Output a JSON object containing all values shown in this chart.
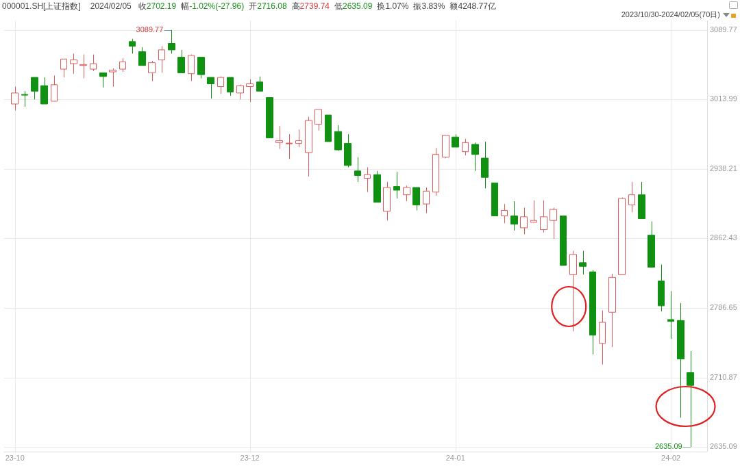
{
  "chart_data": {
    "type": "candlestick",
    "title": "000001.SH[上证指数]",
    "subtitle": "2023/10/30-2024/02/05(70日)",
    "annotations": [
      "2024/02/05",
      "收2702.19",
      "幅-1.02%(-27.96)",
      "开2716.08",
      "高2739.74",
      "低2635.09",
      "换1.07%",
      "振3.83%",
      "额4248.77亿",
      "3089.77",
      "2635.09"
    ],
    "categories": [
      "23-10",
      null,
      null,
      null,
      null,
      null,
      null,
      null,
      null,
      null,
      null,
      null,
      null,
      null,
      null,
      null,
      null,
      null,
      null,
      null,
      null,
      null,
      null,
      null,
      "23-12",
      null,
      null,
      null,
      null,
      null,
      null,
      null,
      null,
      null,
      null,
      null,
      null,
      null,
      null,
      null,
      null,
      null,
      null,
      null,
      null,
      "24-01",
      null,
      null,
      null,
      null,
      null,
      null,
      null,
      null,
      null,
      null,
      null,
      null,
      null,
      null,
      null,
      null,
      null,
      null,
      null,
      null,
      null,
      "24-02",
      null,
      null
    ],
    "ohlc": [
      [
        3009,
        3028,
        3002,
        3021
      ],
      [
        3019,
        3023,
        3006,
        3019
      ],
      [
        3038,
        3038,
        3014,
        3023
      ],
      [
        3029,
        3038,
        3009,
        3009
      ],
      [
        3012,
        3040,
        3012,
        3030
      ],
      [
        3047,
        3058,
        3038,
        3058
      ],
      [
        3053,
        3064,
        3042,
        3057
      ],
      [
        3051,
        3063,
        3037,
        3052
      ],
      [
        3047,
        3063,
        3045,
        3053
      ],
      [
        3043,
        3043,
        3027,
        3039
      ],
      [
        3044,
        3048,
        3028,
        3046
      ],
      [
        3047,
        3059,
        3044,
        3055
      ],
      [
        3077,
        3080,
        3064,
        3072
      ],
      [
        3066,
        3071,
        3051,
        3051
      ],
      [
        3043,
        3056,
        3034,
        3054
      ],
      [
        3057,
        3072,
        3043,
        3068
      ],
      [
        3075,
        3089.77,
        3064,
        3068
      ],
      [
        3060,
        3068,
        3043,
        3043
      ],
      [
        3042,
        3063,
        3034,
        3062
      ],
      [
        3060,
        3060,
        3037,
        3041
      ],
      [
        3038,
        3038,
        3015,
        3031
      ],
      [
        3028,
        3039,
        3020,
        3038
      ],
      [
        3038,
        3038,
        3018,
        3022
      ],
      [
        3021,
        3030,
        3014,
        3029
      ],
      [
        3028,
        3036,
        3011,
        3031
      ],
      [
        3033,
        3039,
        3023,
        3023
      ],
      [
        3016,
        3016,
        2972,
        2972
      ],
      [
        2967,
        2985,
        2960,
        2969
      ],
      [
        2966,
        2976,
        2949,
        2966
      ],
      [
        2966,
        2981,
        2962,
        2969
      ],
      [
        2956,
        2995,
        2930,
        2991
      ],
      [
        2987,
        3003,
        2980,
        3003
      ],
      [
        2997,
        2997,
        2968,
        2968
      ],
      [
        2979,
        2986,
        2958,
        2959
      ],
      [
        2966,
        2976,
        2940,
        2942
      ],
      [
        2936,
        2951,
        2924,
        2931
      ],
      [
        2928,
        2940,
        2913,
        2932
      ],
      [
        2932,
        2936,
        2902,
        2902
      ],
      [
        2892,
        2924,
        2882,
        2918
      ],
      [
        2919,
        2935,
        2906,
        2915
      ],
      [
        2910,
        2920,
        2903,
        2918
      ],
      [
        2918,
        2918,
        2893,
        2899
      ],
      [
        2900,
        2918,
        2890,
        2914
      ],
      [
        2913,
        2961,
        2909,
        2954
      ],
      [
        2951,
        2975,
        2950,
        2975
      ],
      [
        2973,
        2976,
        2962,
        2962
      ],
      [
        2957,
        2971,
        2953,
        2967
      ],
      [
        2965,
        2967,
        2936,
        2954
      ],
      [
        2950,
        2968,
        2917,
        2929
      ],
      [
        2923,
        2923,
        2887,
        2887
      ],
      [
        2887,
        2900,
        2879,
        2893
      ],
      [
        2887,
        2903,
        2871,
        2878
      ],
      [
        2874,
        2896,
        2867,
        2886
      ],
      [
        2880,
        2904,
        2880,
        2882
      ],
      [
        2872,
        2904,
        2869,
        2886
      ],
      [
        2882,
        2896,
        2862,
        2894
      ],
      [
        2887,
        2887,
        2833,
        2833
      ],
      [
        2823,
        2849,
        2761,
        2845
      ],
      [
        2836,
        2849,
        2823,
        2832
      ],
      [
        2826,
        2828,
        2736,
        2757
      ],
      [
        2748,
        2784,
        2725,
        2771
      ],
      [
        2782,
        2824,
        2744,
        2820
      ],
      [
        2823,
        2907,
        2823,
        2906
      ],
      [
        2899,
        2924,
        2891,
        2910
      ],
      [
        2910,
        2924,
        2884,
        2884
      ],
      [
        2866,
        2881,
        2831,
        2831
      ],
      [
        2816,
        2834,
        2783,
        2789
      ],
      [
        2774,
        2805,
        2753,
        2772
      ],
      [
        2773,
        2792,
        2667,
        2731
      ],
      [
        2716.08,
        2739.74,
        2635.09,
        2702.19
      ]
    ],
    "colors": [
      "#e05a5a",
      "#119111",
      "#119111",
      "#119111",
      "#e05a5a",
      "#e05a5a",
      "#e05a5a",
      "#e05a5a",
      "#e05a5a",
      "#119111",
      "#e05a5a",
      "#e05a5a",
      "#119111",
      "#119111",
      "#e05a5a",
      "#e05a5a",
      "#119111",
      "#119111",
      "#e05a5a",
      "#119111",
      "#119111",
      "#e05a5a",
      "#119111",
      "#e05a5a",
      "#e05a5a",
      "#119111",
      "#119111",
      "#e05a5a",
      "#e05a5a",
      "#e05a5a",
      "#e05a5a",
      "#e05a5a",
      "#119111",
      "#119111",
      "#119111",
      "#119111",
      "#e05a5a",
      "#119111",
      "#e05a5a",
      "#119111",
      "#e05a5a",
      "#119111",
      "#e05a5a",
      "#e05a5a",
      "#e05a5a",
      "#119111",
      "#e05a5a",
      "#119111",
      "#119111",
      "#119111",
      "#e05a5a",
      "#119111",
      "#e05a5a",
      "#e05a5a",
      "#e05a5a",
      "#e05a5a",
      "#119111",
      "#e05a5a",
      "#119111",
      "#119111",
      "#e05a5a",
      "#e05a5a",
      "#e05a5a",
      "#e05a5a",
      "#119111",
      "#119111",
      "#119111",
      "#119111",
      "#119111",
      "#119111"
    ],
    "ylim": [
      2630,
      3100
    ],
    "yticks": [
      2635.09,
      2710.87,
      2786.65,
      2862.43,
      2938.21,
      3013.99,
      3089.77
    ],
    "grid": true
  }
}
